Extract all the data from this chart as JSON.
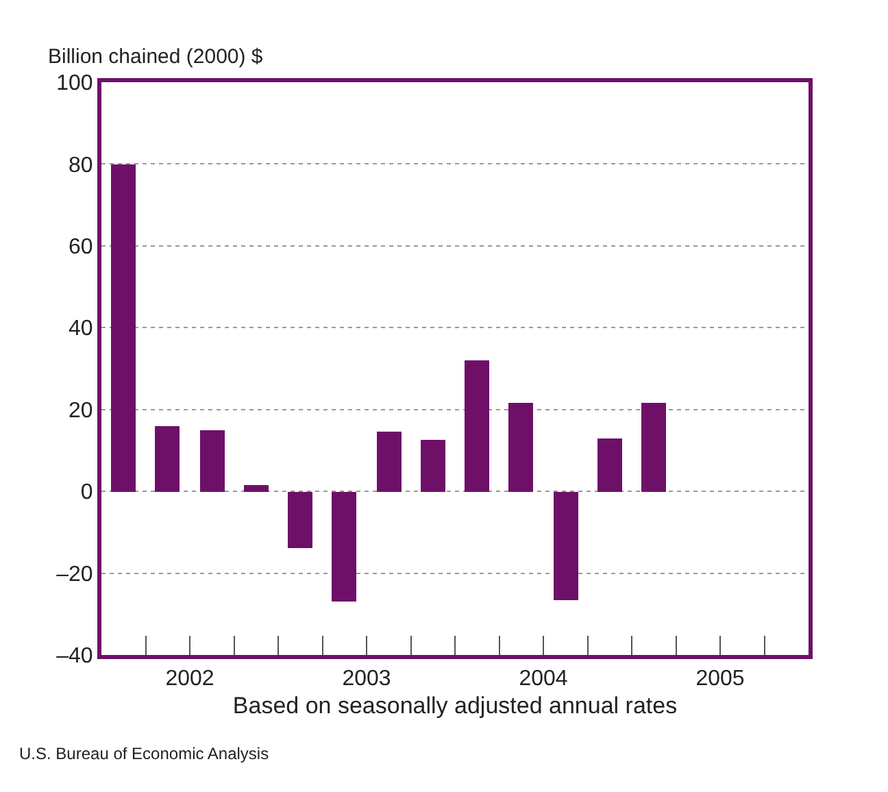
{
  "chart_data": {
    "type": "bar",
    "ylabel": "Billion chained (2000) $",
    "xlabel": "Based on seasonally adjusted annual rates",
    "annotations": [
      "U.S. Bureau of Economic Analysis"
    ],
    "x": [
      2002.125,
      2002.375,
      2002.625,
      2002.875,
      2003.125,
      2003.375,
      2003.625,
      2003.875,
      2004.125,
      2004.375,
      2004.625,
      2004.875,
      2005.125
    ],
    "values": [
      80,
      16,
      15,
      1.5,
      -14,
      -27,
      14.5,
      12.5,
      32,
      21.5,
      -26.5,
      13,
      21.5
    ],
    "color": "#6e1068",
    "xlim": [
      2002,
      2006
    ],
    "xticks": [
      {
        "value": 2002.25,
        "label": null
      },
      {
        "value": 2002.5,
        "label": "2002"
      },
      {
        "value": 2002.75,
        "label": null
      },
      {
        "value": 2003,
        "label": null
      },
      {
        "value": 2003.25,
        "label": null
      },
      {
        "value": 2003.5,
        "label": "2003"
      },
      {
        "value": 2003.75,
        "label": null
      },
      {
        "value": 2004,
        "label": null
      },
      {
        "value": 2004.25,
        "label": null
      },
      {
        "value": 2004.5,
        "label": "2004"
      },
      {
        "value": 2004.75,
        "label": null
      },
      {
        "value": 2005,
        "label": null
      },
      {
        "value": 2005.25,
        "label": null
      },
      {
        "value": 2005.5,
        "label": "2005"
      },
      {
        "value": 2005.75,
        "label": null
      }
    ],
    "ylim": [
      -40,
      100
    ],
    "yticks": [
      {
        "value": -40,
        "label": "–40"
      },
      {
        "value": -20,
        "label": "–20"
      },
      0,
      20,
      40,
      60,
      80,
      100
    ],
    "grid": "y"
  }
}
